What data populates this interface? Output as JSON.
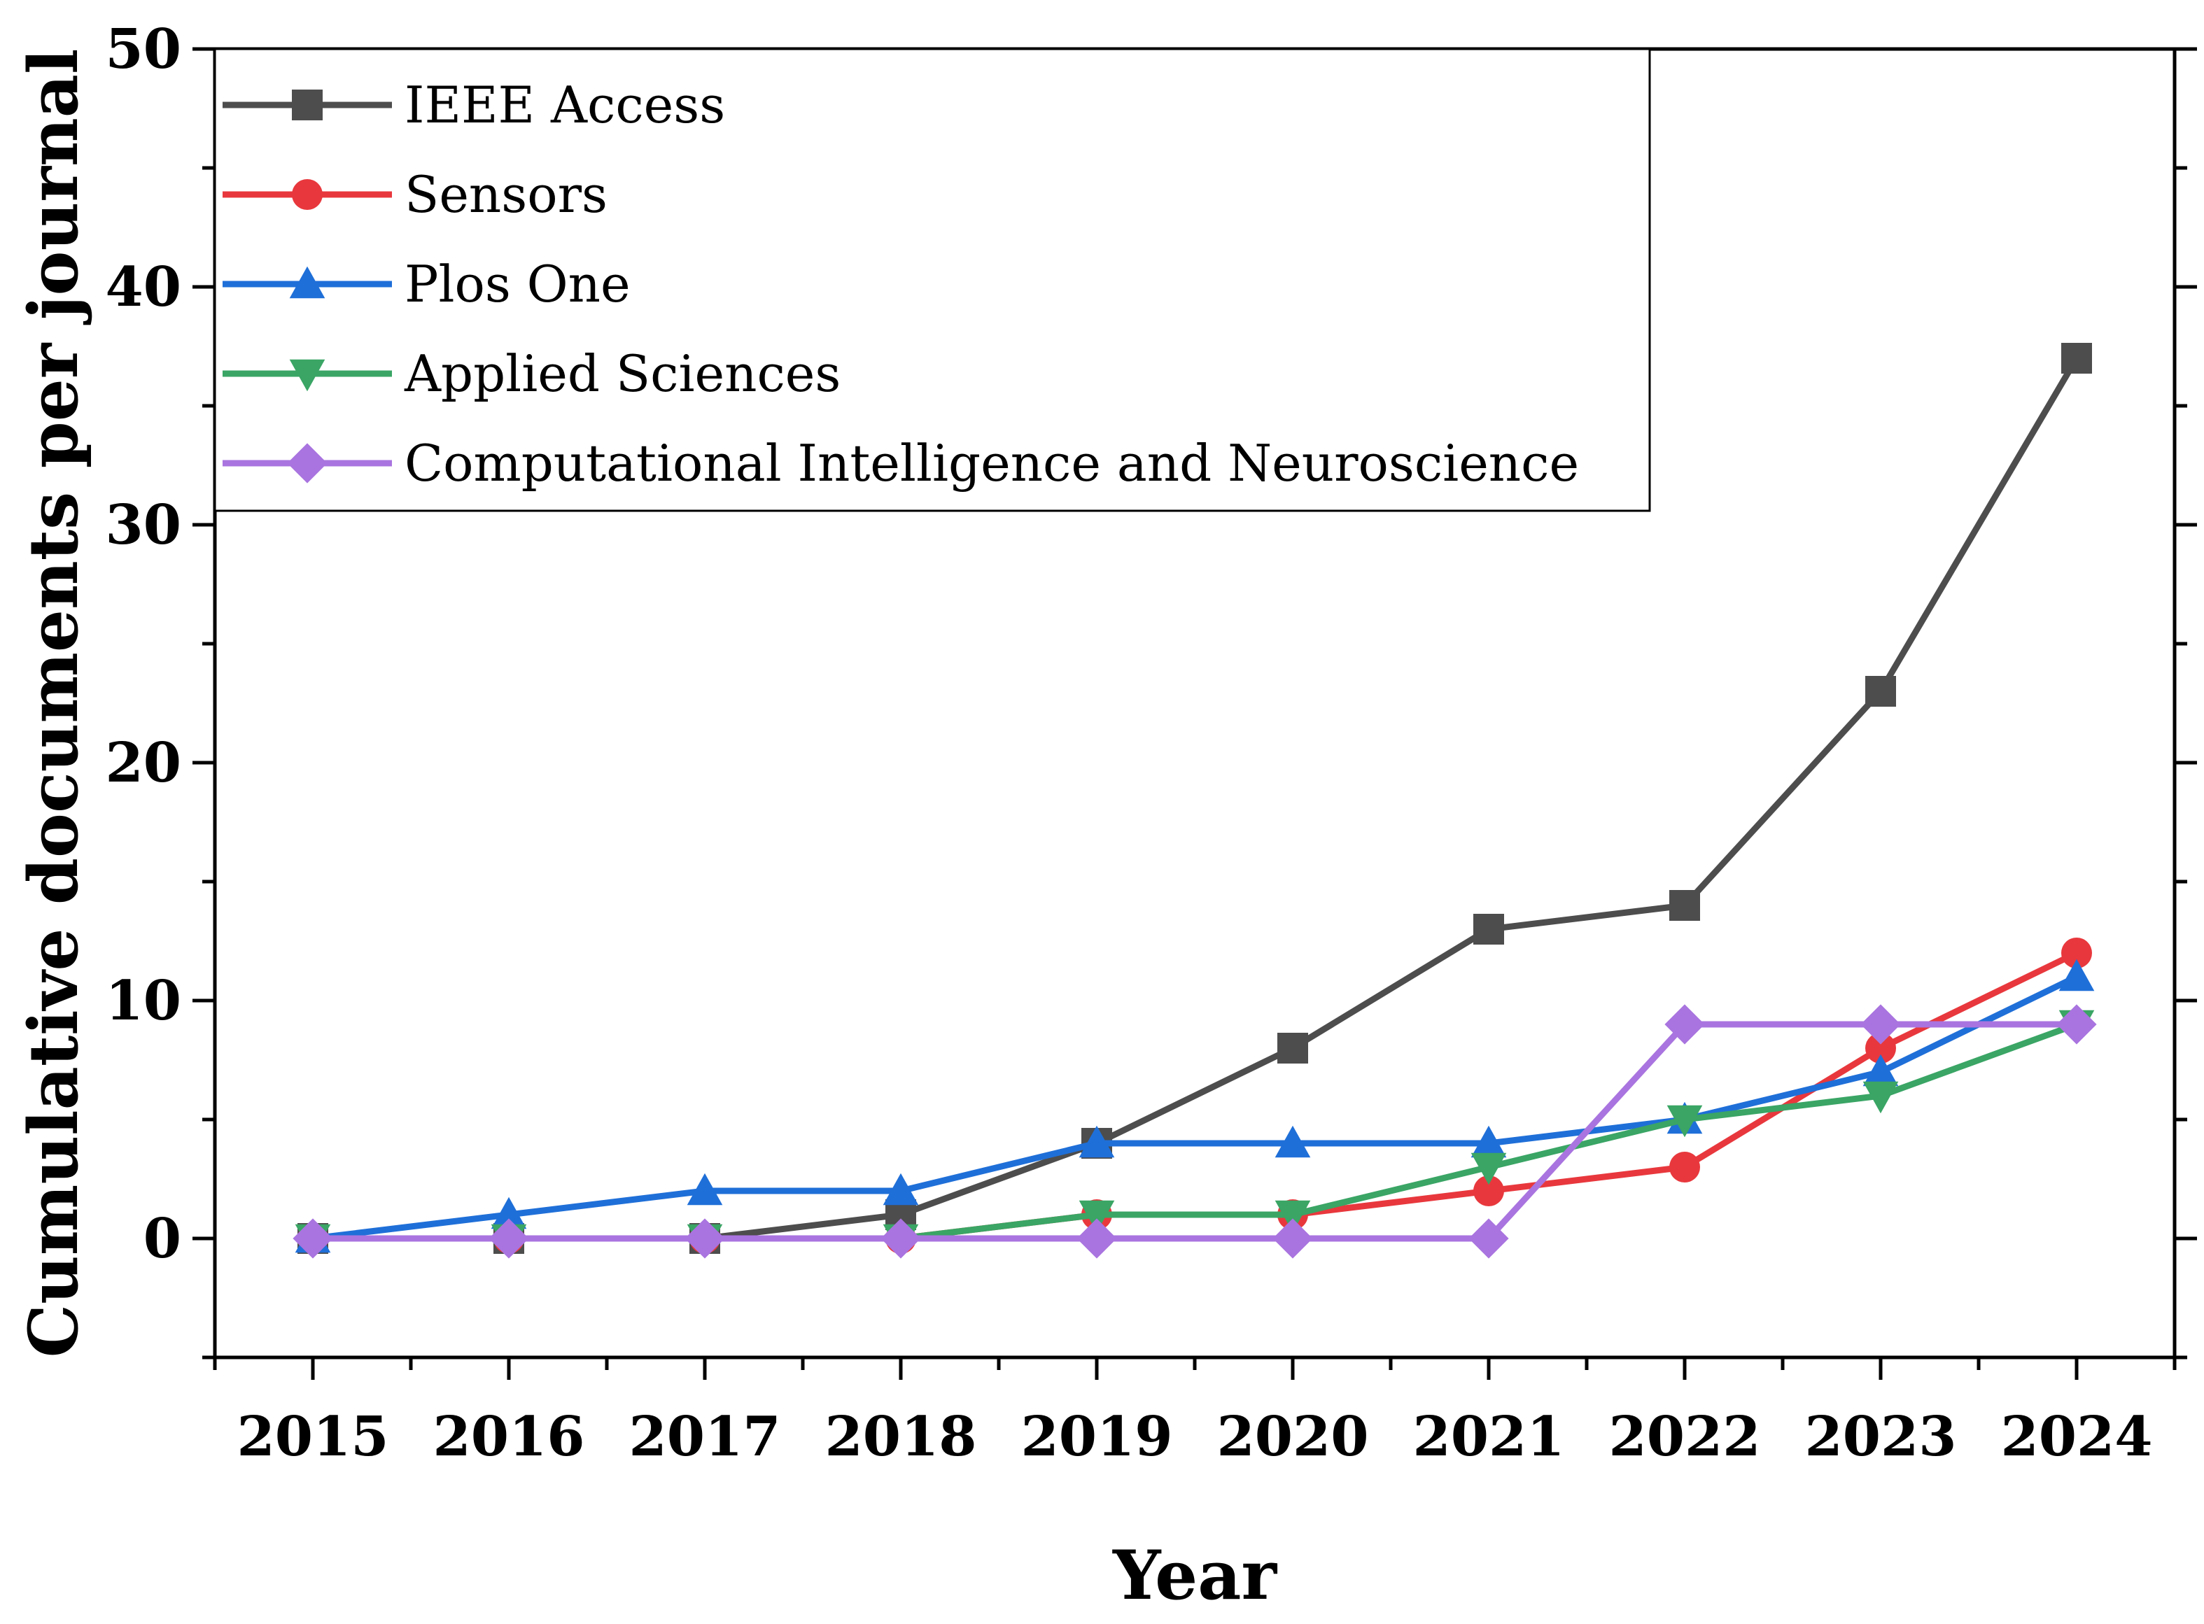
{
  "chart_data": {
    "type": "line",
    "title": "",
    "xlabel": "Year",
    "ylabel": "Cumulative documents per journal",
    "x": [
      2015,
      2016,
      2017,
      2018,
      2019,
      2020,
      2021,
      2022,
      2023,
      2024
    ],
    "x_tick_labels": [
      "2015",
      "2016",
      "2017",
      "2018",
      "2019",
      "2020",
      "2021",
      "2022",
      "2023",
      "2024"
    ],
    "xlim": [
      2014.5,
      2024.5
    ],
    "ylim": [
      -5,
      50
    ],
    "y_ticks": [
      0,
      10,
      20,
      30,
      40,
      50
    ],
    "y_tick_labels": [
      "0",
      "10",
      "20",
      "30",
      "40",
      "50"
    ],
    "grid": false,
    "legend_position": "top-left",
    "series": [
      {
        "name": "IEEE Access",
        "color": "#4d4d4d",
        "marker": "square",
        "values": [
          0,
          0,
          0,
          1,
          4,
          8,
          13,
          14,
          23,
          37
        ]
      },
      {
        "name": "Sensors",
        "color": "#e8383d",
        "marker": "circle",
        "values": [
          0,
          0,
          0,
          0,
          1,
          1,
          2,
          3,
          8,
          12
        ]
      },
      {
        "name": "Plos One",
        "color": "#1f6fd8",
        "marker": "triangle-up",
        "values": [
          0,
          1,
          2,
          2,
          4,
          4,
          4,
          5,
          7,
          11
        ]
      },
      {
        "name": "Applied Sciences",
        "color": "#3aa565",
        "marker": "triangle-down",
        "values": [
          0,
          0,
          0,
          0,
          1,
          1,
          3,
          5,
          6,
          9
        ]
      },
      {
        "name": "Computational Intelligence and Neuroscience",
        "color": "#a974df",
        "marker": "diamond",
        "values": [
          0,
          0,
          0,
          0,
          0,
          0,
          0,
          9,
          9,
          9
        ]
      }
    ]
  }
}
